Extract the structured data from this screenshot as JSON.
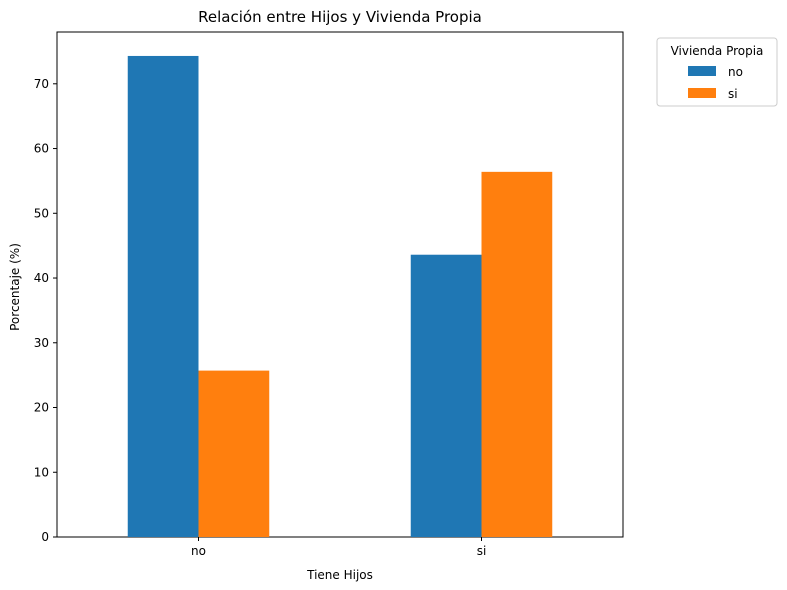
{
  "chart_data": {
    "type": "bar",
    "title": "Relación entre Hijos y Vivienda Propia",
    "xlabel": "Tiene Hijos",
    "ylabel": "Porcentaje (%)",
    "categories": [
      "no",
      "si"
    ],
    "series": [
      {
        "name": "no",
        "values": [
          74.3,
          43.6
        ],
        "color": "#1f77b4"
      },
      {
        "name": "si",
        "values": [
          25.7,
          56.4
        ],
        "color": "#ff7f0e"
      }
    ],
    "ylim": [
      0,
      78
    ],
    "yticks": [
      0,
      10,
      20,
      30,
      40,
      50,
      60,
      70
    ],
    "grid": false,
    "legend": {
      "title": "Vivienda Propia",
      "placement": "outside-top-right"
    }
  }
}
